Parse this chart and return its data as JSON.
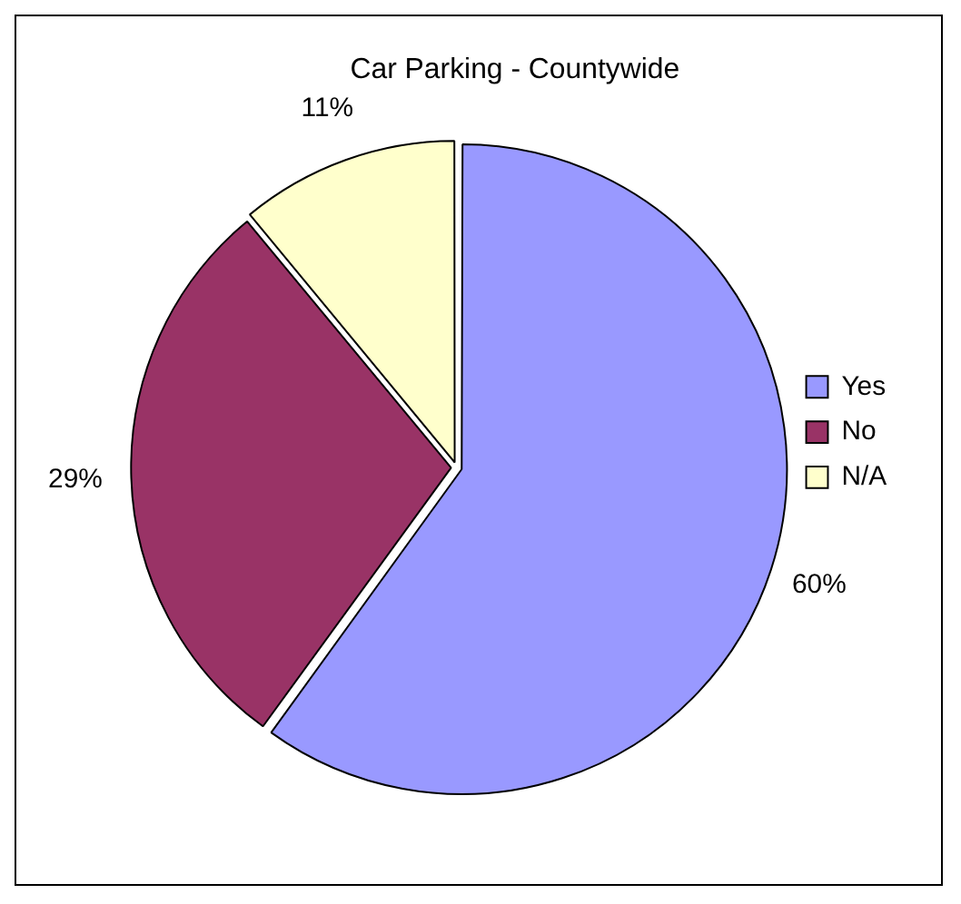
{
  "chart_data": {
    "type": "pie",
    "title": "Car Parking - Countywide",
    "categories": [
      "Yes",
      "No",
      "N/A"
    ],
    "values": [
      60,
      29,
      11
    ],
    "colors": [
      "#9999ff",
      "#993366",
      "#ffffcc"
    ],
    "value_labels": [
      "60%",
      "29%",
      "11%"
    ],
    "legend": "right"
  }
}
